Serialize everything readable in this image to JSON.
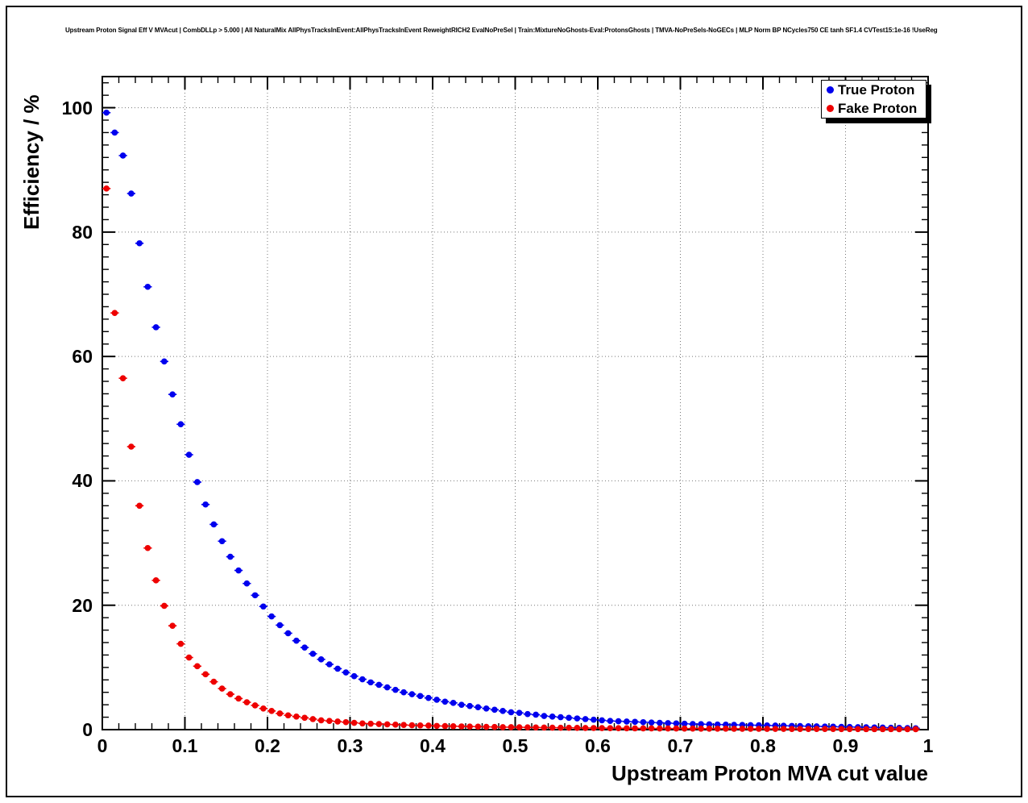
{
  "chart_data": {
    "type": "scatter",
    "title": "Upstream Proton Signal Eff V MVAcut | CombDLLp > 5.000 | All NaturalMix AllPhysTracksInEvent:AllPhysTracksInEvent ReweightRICH2 EvalNoPreSel | Train:MixtureNoGhosts-Eval:ProtonsGhosts | TMVA-NoPreSels-NoGECs | MLP Norm BP NCycles750 CE tanh SF1.4 CVTest15:1e-16 !UseReg",
    "xlabel": "Upstream Proton MVA cut value",
    "ylabel": "Efficiency / %",
    "xlim": [
      0,
      1
    ],
    "ylim": [
      0,
      105
    ],
    "grid": true,
    "grid_style": "dotted",
    "legend_position": "top-right",
    "x_major_ticks": [
      0,
      0.1,
      0.2,
      0.3,
      0.4,
      0.5,
      0.6,
      0.7,
      0.8,
      0.9,
      1
    ],
    "x_tick_labels": [
      "0",
      "0.1",
      "0.2",
      "0.3",
      "0.4",
      "0.5",
      "0.6",
      "0.7",
      "0.8",
      "0.9",
      "1"
    ],
    "y_major_ticks": [
      0,
      20,
      40,
      60,
      80,
      100
    ],
    "y_tick_labels": [
      "0",
      "20",
      "40",
      "60",
      "80",
      "100"
    ],
    "x_minor_step": 0.02,
    "y_minor_step": 2,
    "x_bin_half_width": 0.005,
    "x": [
      0.005,
      0.015,
      0.025,
      0.035,
      0.045,
      0.055,
      0.065,
      0.075,
      0.085,
      0.095,
      0.105,
      0.115,
      0.125,
      0.135,
      0.145,
      0.155,
      0.165,
      0.175,
      0.185,
      0.195,
      0.205,
      0.215,
      0.225,
      0.235,
      0.245,
      0.255,
      0.265,
      0.275,
      0.285,
      0.295,
      0.305,
      0.315,
      0.325,
      0.335,
      0.345,
      0.355,
      0.365,
      0.375,
      0.385,
      0.395,
      0.405,
      0.415,
      0.425,
      0.435,
      0.445,
      0.455,
      0.465,
      0.475,
      0.485,
      0.495,
      0.505,
      0.515,
      0.525,
      0.535,
      0.545,
      0.555,
      0.565,
      0.575,
      0.585,
      0.595,
      0.605,
      0.615,
      0.625,
      0.635,
      0.645,
      0.655,
      0.665,
      0.675,
      0.685,
      0.695,
      0.705,
      0.715,
      0.725,
      0.735,
      0.745,
      0.755,
      0.765,
      0.775,
      0.785,
      0.795,
      0.805,
      0.815,
      0.825,
      0.835,
      0.845,
      0.855,
      0.865,
      0.875,
      0.885,
      0.895,
      0.905,
      0.915,
      0.925,
      0.935,
      0.945,
      0.955,
      0.965,
      0.975,
      0.985
    ],
    "series": [
      {
        "name": "True Proton",
        "color": "#0000ee",
        "values": [
          99.2,
          96.0,
          92.3,
          86.2,
          78.2,
          71.2,
          64.7,
          59.2,
          53.9,
          49.1,
          44.2,
          39.8,
          36.2,
          33.0,
          30.3,
          27.8,
          25.6,
          23.5,
          21.6,
          19.8,
          18.2,
          16.8,
          15.5,
          14.3,
          13.2,
          12.2,
          11.3,
          10.5,
          9.8,
          9.2,
          8.6,
          8.1,
          7.6,
          7.2,
          6.8,
          6.4,
          6.0,
          5.7,
          5.4,
          5.1,
          4.8,
          4.5,
          4.3,
          4.0,
          3.8,
          3.6,
          3.4,
          3.2,
          3.0,
          2.8,
          2.7,
          2.5,
          2.4,
          2.2,
          2.1,
          2.0,
          1.9,
          1.8,
          1.7,
          1.6,
          1.5,
          1.4,
          1.35,
          1.3,
          1.25,
          1.2,
          1.15,
          1.1,
          1.05,
          1.0,
          0.95,
          0.9,
          0.88,
          0.85,
          0.82,
          0.8,
          0.77,
          0.75,
          0.72,
          0.7,
          0.68,
          0.65,
          0.63,
          0.6,
          0.58,
          0.55,
          0.53,
          0.5,
          0.48,
          0.45,
          0.43,
          0.4,
          0.38,
          0.35,
          0.33,
          0.3,
          0.28,
          0.25,
          0.22
        ]
      },
      {
        "name": "Fake Proton",
        "color": "#ee0000",
        "values": [
          87.0,
          67.0,
          56.5,
          45.5,
          36.0,
          29.2,
          24.0,
          19.9,
          16.7,
          13.8,
          11.6,
          10.2,
          8.9,
          7.7,
          6.6,
          5.7,
          5.0,
          4.4,
          3.9,
          3.4,
          3.0,
          2.6,
          2.3,
          2.1,
          1.9,
          1.7,
          1.5,
          1.4,
          1.3,
          1.2,
          1.1,
          1.0,
          0.95,
          0.9,
          0.85,
          0.8,
          0.75,
          0.7,
          0.68,
          0.65,
          0.6,
          0.58,
          0.55,
          0.52,
          0.5,
          0.48,
          0.45,
          0.43,
          0.4,
          0.4,
          0.38,
          0.36,
          0.35,
          0.33,
          0.32,
          0.3,
          0.3,
          0.28,
          0.27,
          0.26,
          0.25,
          0.24,
          0.23,
          0.22,
          0.21,
          0.2,
          0.2,
          0.19,
          0.18,
          0.18,
          0.17,
          0.17,
          0.16,
          0.16,
          0.15,
          0.15,
          0.14,
          0.14,
          0.13,
          0.13,
          0.12,
          0.12,
          0.12,
          0.11,
          0.11,
          0.1,
          0.1,
          0.1,
          0.1,
          0.09,
          0.09,
          0.09,
          0.08,
          0.08,
          0.08,
          0.08,
          0.07,
          0.07,
          0.07
        ]
      }
    ]
  }
}
